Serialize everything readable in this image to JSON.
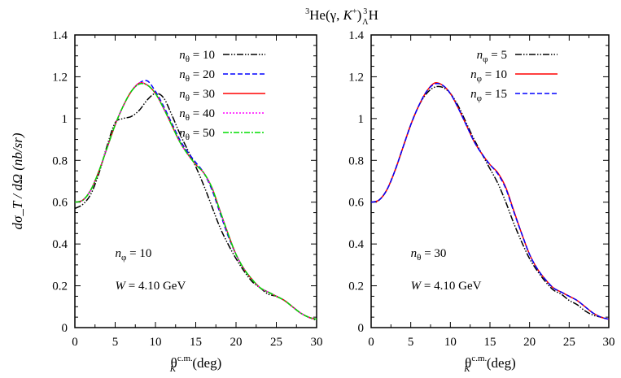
{
  "title": {
    "main": "He(γ, ",
    "k": "K",
    "kplus": "+",
    "close": ")",
    "sup3a": "3",
    "sup3b": "3",
    "lambda": "Λ",
    "h": "H"
  },
  "ylabel": "dσ_T / dΩ (nb/sr)",
  "xlabel": {
    "theta": "θ",
    "sub": "K",
    "sup": "c.m.",
    "unit": " (deg)"
  },
  "chart_data": [
    {
      "type": "line",
      "xlim": [
        0,
        30
      ],
      "ylim": [
        0,
        1.4
      ],
      "xticks": [
        0,
        5,
        10,
        15,
        20,
        25,
        30
      ],
      "yticks": [
        0,
        0.2,
        0.4,
        0.6,
        0.8,
        1,
        1.2,
        1.4
      ],
      "annotations": [
        {
          "var": "n",
          "sub": "φ",
          "eq": " = 10"
        },
        {
          "var": "W",
          "eq": " = 4.10 GeV"
        }
      ],
      "legend_placement": "top-right",
      "x": [
        0,
        1,
        2,
        3,
        4,
        5,
        6,
        7,
        8,
        9,
        10,
        11,
        12,
        13,
        14,
        15,
        16,
        17,
        18,
        19,
        20,
        21,
        22,
        23,
        24,
        25,
        26,
        27,
        28,
        29,
        30
      ],
      "series": [
        {
          "name": "n_θ = 10",
          "sub": "θ",
          "eq": " = 10",
          "color": "#000000",
          "dash": "8,2,1.5,2,1.5,2",
          "values": [
            0.57,
            0.59,
            0.64,
            0.74,
            0.87,
            0.98,
            1.0,
            1.01,
            1.04,
            1.09,
            1.12,
            1.1,
            1.02,
            0.93,
            0.85,
            0.77,
            0.68,
            0.58,
            0.48,
            0.4,
            0.33,
            0.27,
            0.22,
            0.19,
            0.16,
            0.15,
            0.13,
            0.1,
            0.07,
            0.05,
            0.035
          ]
        },
        {
          "name": "n_θ = 20",
          "sub": "θ",
          "eq": " = 20",
          "color": "#0000ff",
          "dash": "6,3",
          "values": [
            0.6,
            0.61,
            0.66,
            0.75,
            0.86,
            0.97,
            1.06,
            1.13,
            1.17,
            1.18,
            1.13,
            1.06,
            0.98,
            0.9,
            0.84,
            0.79,
            0.74,
            0.66,
            0.55,
            0.44,
            0.35,
            0.28,
            0.23,
            0.19,
            0.17,
            0.15,
            0.13,
            0.1,
            0.07,
            0.05,
            0.04
          ]
        },
        {
          "name": "n_θ = 30",
          "sub": "θ",
          "eq": " = 30",
          "color": "#ff0000",
          "dash": "",
          "values": [
            0.6,
            0.61,
            0.66,
            0.75,
            0.86,
            0.97,
            1.06,
            1.13,
            1.17,
            1.16,
            1.12,
            1.05,
            0.97,
            0.89,
            0.83,
            0.78,
            0.74,
            0.67,
            0.56,
            0.45,
            0.35,
            0.28,
            0.23,
            0.19,
            0.17,
            0.15,
            0.13,
            0.1,
            0.07,
            0.05,
            0.04
          ]
        },
        {
          "name": "n_θ = 40",
          "sub": "θ",
          "eq": " = 40",
          "color": "#ff00ff",
          "dash": "2,2",
          "values": [
            0.6,
            0.61,
            0.66,
            0.75,
            0.86,
            0.97,
            1.06,
            1.13,
            1.17,
            1.16,
            1.12,
            1.05,
            0.97,
            0.89,
            0.83,
            0.78,
            0.74,
            0.67,
            0.56,
            0.45,
            0.35,
            0.28,
            0.23,
            0.19,
            0.17,
            0.15,
            0.13,
            0.1,
            0.07,
            0.05,
            0.04
          ]
        },
        {
          "name": "n_θ = 50",
          "sub": "θ",
          "eq": " = 50",
          "color": "#00dd00",
          "dash": "7,2,2,2",
          "values": [
            0.6,
            0.61,
            0.66,
            0.75,
            0.86,
            0.97,
            1.06,
            1.13,
            1.165,
            1.16,
            1.12,
            1.05,
            0.97,
            0.89,
            0.83,
            0.78,
            0.74,
            0.67,
            0.56,
            0.45,
            0.35,
            0.28,
            0.23,
            0.19,
            0.17,
            0.15,
            0.13,
            0.1,
            0.07,
            0.05,
            0.04
          ]
        }
      ]
    },
    {
      "type": "line",
      "xlim": [
        0,
        30
      ],
      "ylim": [
        0,
        1.4
      ],
      "xticks": [
        0,
        5,
        10,
        15,
        20,
        25,
        30
      ],
      "yticks": [
        0,
        0.2,
        0.4,
        0.6,
        0.8,
        1,
        1.2,
        1.4
      ],
      "annotations": [
        {
          "var": "n",
          "sub": "θ",
          "eq": " = 30"
        },
        {
          "var": "W",
          "eq": " = 4.10 GeV"
        }
      ],
      "legend_placement": "top-right",
      "x": [
        0,
        1,
        2,
        3,
        4,
        5,
        6,
        7,
        8,
        9,
        10,
        11,
        12,
        13,
        14,
        15,
        16,
        17,
        18,
        19,
        20,
        21,
        22,
        23,
        24,
        25,
        26,
        27,
        28,
        29,
        30
      ],
      "series": [
        {
          "name": "n_φ = 5",
          "sub": "φ",
          "eq": " = 5",
          "color": "#000000",
          "dash": "8,2,1.5,2,1.5,2",
          "values": [
            0.6,
            0.61,
            0.66,
            0.75,
            0.86,
            0.97,
            1.06,
            1.12,
            1.15,
            1.15,
            1.12,
            1.06,
            0.98,
            0.9,
            0.83,
            0.76,
            0.69,
            0.6,
            0.5,
            0.41,
            0.33,
            0.27,
            0.22,
            0.18,
            0.16,
            0.13,
            0.11,
            0.08,
            0.06,
            0.05,
            0.04
          ]
        },
        {
          "name": "n_φ = 10",
          "sub": "φ",
          "eq": " = 10",
          "color": "#ff0000",
          "dash": "",
          "values": [
            0.6,
            0.61,
            0.66,
            0.75,
            0.86,
            0.97,
            1.06,
            1.13,
            1.17,
            1.16,
            1.12,
            1.05,
            0.97,
            0.89,
            0.83,
            0.78,
            0.74,
            0.67,
            0.56,
            0.45,
            0.35,
            0.28,
            0.23,
            0.19,
            0.17,
            0.15,
            0.13,
            0.1,
            0.07,
            0.05,
            0.04
          ]
        },
        {
          "name": "n_φ = 15",
          "sub": "φ",
          "eq": " = 15",
          "color": "#0000ff",
          "dash": "6,3",
          "values": [
            0.6,
            0.61,
            0.66,
            0.75,
            0.86,
            0.97,
            1.06,
            1.13,
            1.165,
            1.16,
            1.12,
            1.05,
            0.97,
            0.89,
            0.83,
            0.78,
            0.735,
            0.665,
            0.555,
            0.45,
            0.35,
            0.28,
            0.23,
            0.19,
            0.17,
            0.15,
            0.13,
            0.1,
            0.07,
            0.05,
            0.04
          ]
        }
      ]
    }
  ]
}
